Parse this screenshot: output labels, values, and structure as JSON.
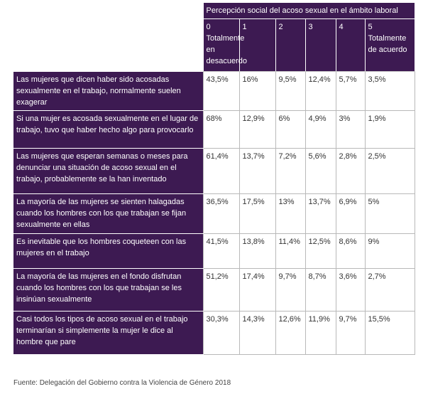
{
  "table": {
    "header_title": "Percepción social del acoso sexual en el ámbito laboral",
    "columns": [
      "0 Totalmente en desacuerdo",
      "1",
      "2",
      "3",
      "4",
      "5 Totalmente de acuerdo"
    ],
    "rows": [
      {
        "statement": "Las mujeres que dicen haber sido acosadas sexualmente en el trabajo, normalmente suelen exagerar",
        "values": [
          "43,5%",
          "16%",
          "9,5%",
          "12,4%",
          "5,7%",
          "3,5%"
        ]
      },
      {
        "statement": "Si una mujer es acosada sexualmente en el lugar de trabajo, tuvo que haber hecho algo para provocarlo",
        "values": [
          "68%",
          "12,9%",
          "6%",
          "4,9%",
          "3%",
          "1,9%"
        ]
      },
      {
        "statement": "Las mujeres que esperan semanas o meses para denunciar una situación de acoso sexual en el trabajo, probablemente se la han inventado",
        "values": [
          "61,4%",
          "13,7%",
          "7,2%",
          "5,6%",
          "2,8%",
          "2,5%"
        ]
      },
      {
        "statement": "La mayoría de las mujeres se sienten halagadas cuando los hombres con los que trabajan se fijan sexualmente en ellas",
        "values": [
          "36,5%",
          "17,5%",
          "13%",
          "13,7%",
          "6,9%",
          "5%"
        ]
      },
      {
        "statement": "Es inevitable que los hombres coqueteen con las mujeres en el trabajo",
        "values": [
          "41,5%",
          "13,8%",
          "11,4%",
          "12,5%",
          "8,6%",
          "9%"
        ]
      },
      {
        "statement": "La mayoría de las mujeres en el fondo disfrutan cuando los hombres con los que trabajan se les insinúan sexualmente",
        "values": [
          "51,2%",
          "17,4%",
          "9,7%",
          "8,7%",
          "3,6%",
          "2,7%"
        ]
      },
      {
        "statement": "Casi todos los tipos de acoso sexual en el trabajo terminarían si simplemente la mujer le dice al hombre que pare",
        "values": [
          "30,3%",
          "14,3%",
          "12,6%",
          "11,9%",
          "9,7%",
          "15,5%"
        ]
      }
    ]
  },
  "source": "Fuente: Delegación del Gobierno contra la Violencia de Género 2018"
}
